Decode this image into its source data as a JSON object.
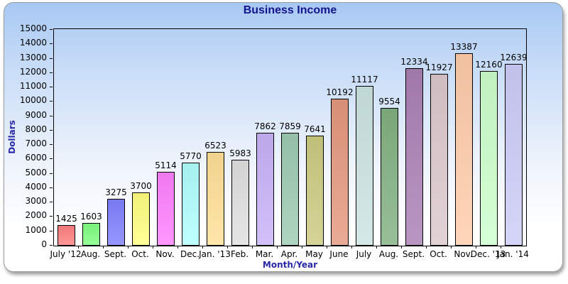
{
  "frame": {
    "background_top_color": "#a7c8f3",
    "background_bottom_color": "#ffffff",
    "border_color": "#9d9d9d"
  },
  "title": {
    "text": "Business Income",
    "color": "#14148c"
  },
  "axes": {
    "x_title": "Month/Year",
    "y_title": "Dollars",
    "axis_title_color": "#2929a8",
    "tick_label_color": "#000000"
  },
  "chart_data": {
    "type": "bar",
    "title": "Business Income",
    "xlabel": "Month/Year",
    "ylabel": "Dollars",
    "ylim": [
      0,
      15000
    ],
    "ytick_step": 1000,
    "yticks": [
      0,
      1000,
      2000,
      3000,
      4000,
      5000,
      6000,
      7000,
      8000,
      9000,
      10000,
      11000,
      12000,
      13000,
      14000,
      15000
    ],
    "grid": false,
    "legend": "none",
    "value_labels_shown": true,
    "categories": [
      "July '12",
      "Aug.",
      "Sept.",
      "Oct.",
      "Nov.",
      "Dec.",
      "Jan. '13",
      "Feb.",
      "Mar.",
      "Apr.",
      "May",
      "June",
      "July",
      "Aug.",
      "Sept.",
      "Oct.",
      "Nov.",
      "Dec. '13",
      "Jan. '14"
    ],
    "values": [
      1425,
      1603,
      3275,
      3700,
      5114,
      5770,
      6523,
      5983,
      7862,
      7859,
      7641,
      10192,
      11117,
      9554,
      12334,
      11927,
      13387,
      12160,
      12639
    ],
    "bar_colors": [
      "#ff8080",
      "#80ff80",
      "#8080ff",
      "#ffff80",
      "#ff80ff",
      "#b0ffff",
      "#ffe096",
      "#e0e0e0",
      "#c8b2f8",
      "#9ccbb2",
      "#cccb80",
      "#e5987e",
      "#cbe4e2",
      "#81b181",
      "#aa80b5",
      "#dcc8cc",
      "#ffccaa",
      "#ccffcc",
      "#ccccf8"
    ],
    "bar_border_color": "#000000"
  }
}
